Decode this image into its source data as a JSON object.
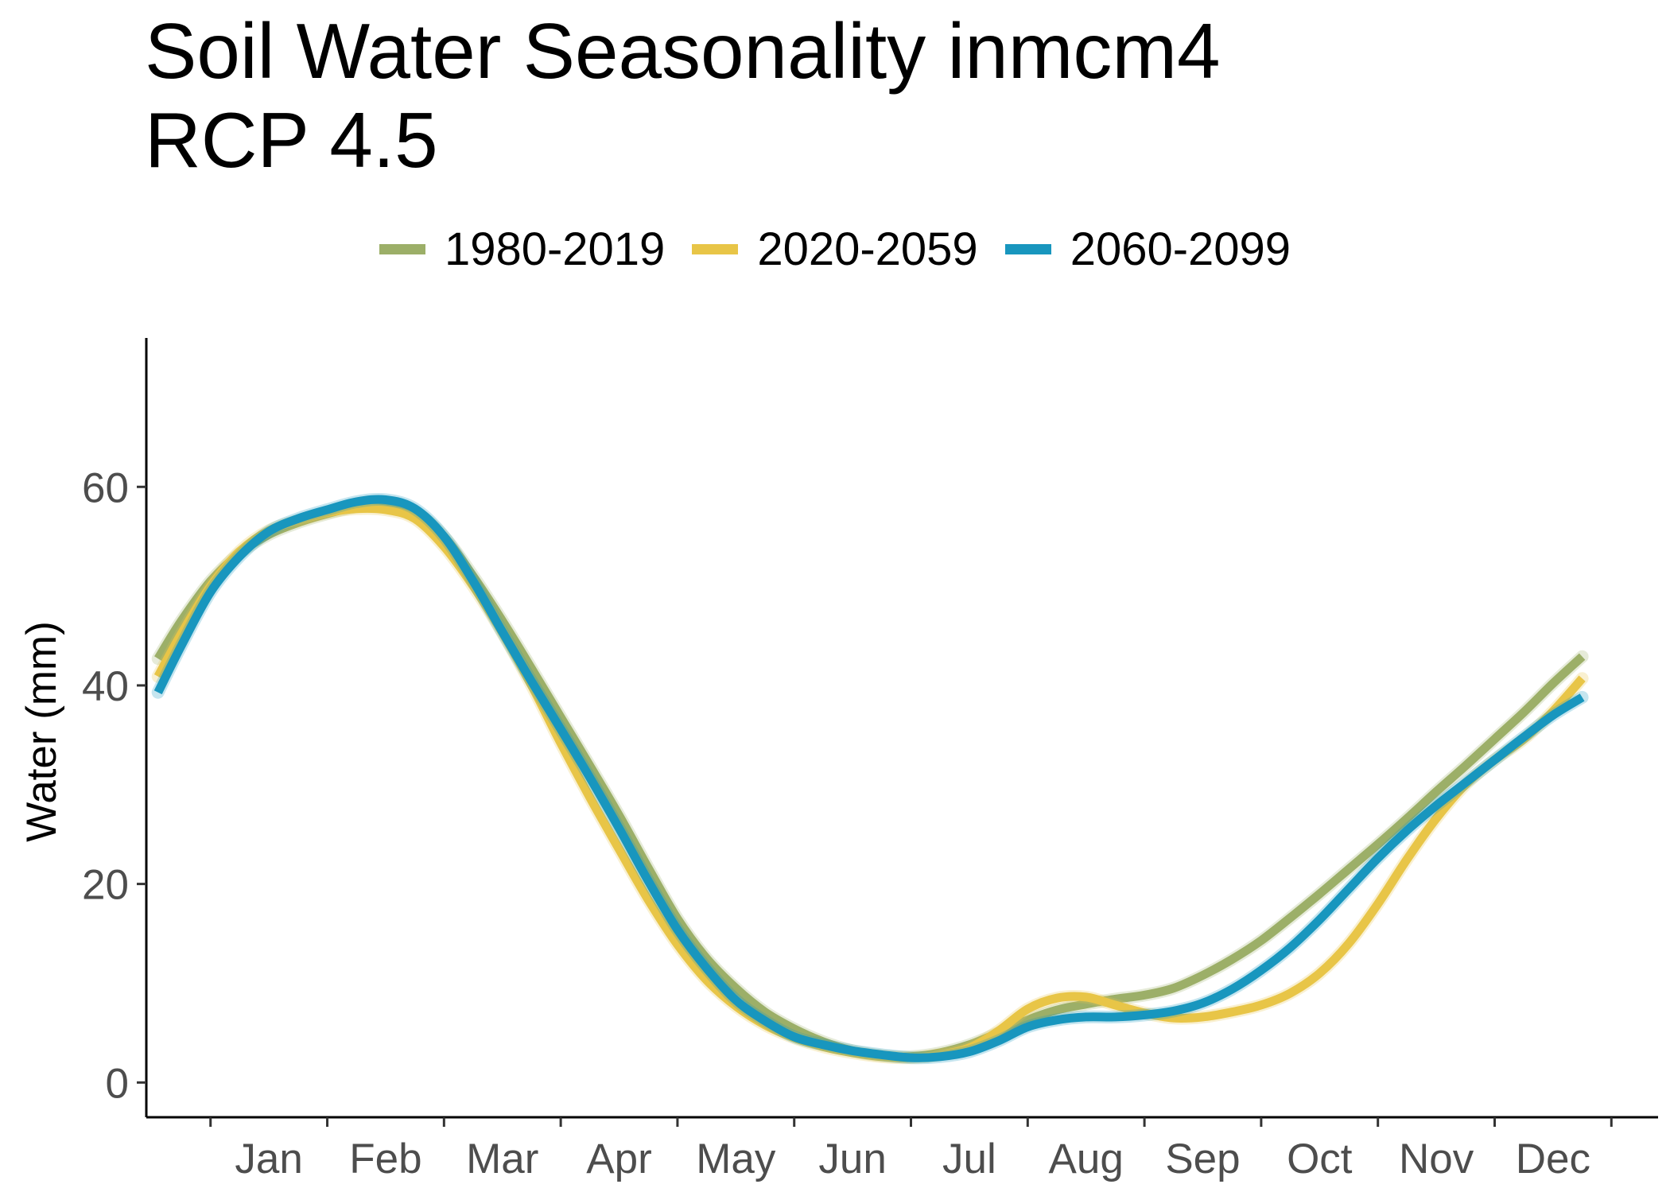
{
  "chart_data": {
    "type": "line",
    "title_lines": [
      "Soil Water Seasonality inmcm4",
      "RCP 4.5"
    ],
    "xlabel": "",
    "ylabel": "Water (mm)",
    "x_ticks": [
      "Jan",
      "Feb",
      "Mar",
      "Apr",
      "May",
      "Jun",
      "Jul",
      "Aug",
      "Sep",
      "Oct",
      "Nov",
      "Dec"
    ],
    "y_ticks": [
      0,
      20,
      40,
      60
    ],
    "xlim": [
      -0.55,
      12.4
    ],
    "ylim": [
      -3.5,
      75
    ],
    "grid": false,
    "legend_position": "top",
    "x": [
      -0.45,
      -0.25,
      0,
      0.25,
      0.5,
      0.75,
      1,
      1.25,
      1.5,
      1.75,
      2,
      2.25,
      2.5,
      2.75,
      3,
      3.25,
      3.5,
      3.75,
      4,
      4.25,
      4.5,
      4.75,
      5,
      5.25,
      5.5,
      5.75,
      6,
      6.25,
      6.5,
      6.75,
      7,
      7.25,
      7.5,
      7.75,
      8,
      8.25,
      8.5,
      8.75,
      9,
      9.25,
      9.5,
      9.75,
      10,
      10.25,
      10.5,
      10.75,
      11,
      11.25,
      11.5,
      11.75
    ],
    "series": [
      {
        "name": "1980-2019",
        "color": "#9caf68",
        "values": [
          42.7,
          46.5,
          50.5,
          53.3,
          55.2,
          56.4,
          57.3,
          58.0,
          58.2,
          57.5,
          55.0,
          51.0,
          46.5,
          41.7,
          36.8,
          31.9,
          26.9,
          21.6,
          16.5,
          12.5,
          9.5,
          7.1,
          5.4,
          4.1,
          3.2,
          2.7,
          2.6,
          3.0,
          3.8,
          5.0,
          6.3,
          7.3,
          7.9,
          8.4,
          8.8,
          9.5,
          10.8,
          12.4,
          14.3,
          16.6,
          19.0,
          21.5,
          24.0,
          26.6,
          29.3,
          31.9,
          34.6,
          37.3,
          40.2,
          42.9
        ]
      },
      {
        "name": "2020-2059",
        "color": "#e8c547",
        "values": [
          40.9,
          45.2,
          50.0,
          53.5,
          55.6,
          56.6,
          57.4,
          57.8,
          57.7,
          56.8,
          54.0,
          50.0,
          45.3,
          40.0,
          34.2,
          28.7,
          23.5,
          18.4,
          13.9,
          10.3,
          7.7,
          5.8,
          4.5,
          3.6,
          3.0,
          2.6,
          2.5,
          2.8,
          3.5,
          5.2,
          7.4,
          8.5,
          8.6,
          7.8,
          7.0,
          6.5,
          6.6,
          7.1,
          7.8,
          9.0,
          11.0,
          14.0,
          18.0,
          22.5,
          26.6,
          30.0,
          32.5,
          34.6,
          37.4,
          40.7
        ]
      },
      {
        "name": "2060-2099",
        "color": "#1896be",
        "values": [
          39.3,
          44.0,
          49.4,
          53.0,
          55.5,
          56.8,
          57.7,
          58.5,
          58.7,
          57.8,
          55.0,
          50.5,
          45.4,
          40.4,
          35.6,
          30.7,
          25.6,
          20.3,
          15.4,
          11.5,
          8.3,
          6.2,
          4.6,
          3.8,
          3.2,
          2.8,
          2.5,
          2.6,
          3.1,
          4.2,
          5.6,
          6.3,
          6.6,
          6.6,
          6.8,
          7.2,
          8.0,
          9.4,
          11.3,
          13.6,
          16.4,
          19.5,
          22.6,
          25.4,
          27.9,
          30.2,
          32.5,
          34.8,
          37.0,
          38.8
        ]
      }
    ]
  }
}
